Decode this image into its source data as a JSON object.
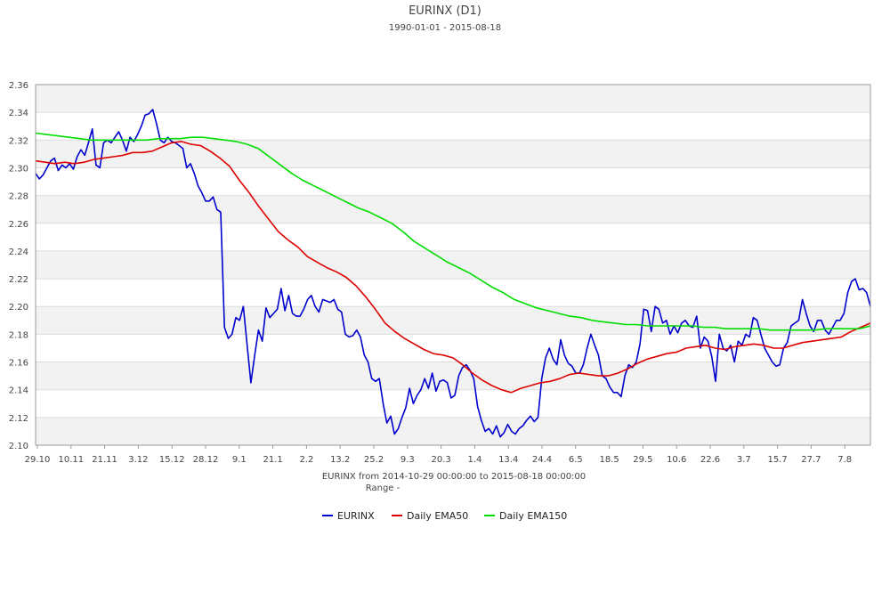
{
  "chart_data": {
    "type": "line",
    "title": "EURINX (D1)",
    "subtitle": "1990-01-01 - 2015-08-18",
    "xlabel": "EURINX from 2014-10-29 00:00:00 to 2015-08-18 00:00:00",
    "xlabel2": "Range  -",
    "ylim": [
      2.1,
      2.36
    ],
    "yticks": [
      "2.10",
      "2.12",
      "2.14",
      "2.16",
      "2.18",
      "2.20",
      "2.22",
      "2.24",
      "2.26",
      "2.28",
      "2.30",
      "2.32",
      "2.34",
      "2.36"
    ],
    "xticks": [
      "29.10",
      "10.11",
      "21.11",
      "3.12",
      "15.12",
      "28.12",
      "9.1",
      "21.1",
      "2.2",
      "13.2",
      "25.2",
      "9.3",
      "20.3",
      "1.4",
      "13.4",
      "24.4",
      "6.5",
      "18.5",
      "29.5",
      "10.6",
      "22.6",
      "3.7",
      "15.7",
      "27.7",
      "7.8"
    ],
    "grid": true,
    "legend_position": "bottom",
    "series": [
      {
        "name": "EURINX",
        "color": "#0000cc",
        "values": [
          2.296,
          2.292,
          2.295,
          2.3,
          2.305,
          2.307,
          2.298,
          2.302,
          2.3,
          2.303,
          2.299,
          2.308,
          2.313,
          2.309,
          2.318,
          2.328,
          2.302,
          2.3,
          2.318,
          2.32,
          2.318,
          2.322,
          2.326,
          2.32,
          2.312,
          2.322,
          2.319,
          2.324,
          2.33,
          2.338,
          2.339,
          2.342,
          2.332,
          2.32,
          2.318,
          2.322,
          2.319,
          2.318,
          2.316,
          2.314,
          2.3,
          2.303,
          2.296,
          2.287,
          2.282,
          2.276,
          2.276,
          2.279,
          2.27,
          2.268,
          2.185,
          2.177,
          2.18,
          2.192,
          2.19,
          2.2,
          2.172,
          2.145,
          2.165,
          2.183,
          2.175,
          2.199,
          2.192,
          2.195,
          2.198,
          2.213,
          2.197,
          2.208,
          2.195,
          2.193,
          2.193,
          2.198,
          2.205,
          2.208,
          2.2,
          2.196,
          2.205,
          2.204,
          2.203,
          2.205,
          2.198,
          2.196,
          2.18,
          2.178,
          2.179,
          2.183,
          2.178,
          2.165,
          2.16,
          2.148,
          2.146,
          2.148,
          2.13,
          2.116,
          2.121,
          2.108,
          2.112,
          2.12,
          2.127,
          2.141,
          2.13,
          2.136,
          2.14,
          2.148,
          2.141,
          2.152,
          2.139,
          2.146,
          2.147,
          2.145,
          2.134,
          2.136,
          2.15,
          2.156,
          2.158,
          2.154,
          2.148,
          2.128,
          2.118,
          2.11,
          2.112,
          2.108,
          2.114,
          2.106,
          2.109,
          2.115,
          2.11,
          2.108,
          2.112,
          2.114,
          2.118,
          2.121,
          2.117,
          2.12,
          2.148,
          2.163,
          2.17,
          2.162,
          2.158,
          2.176,
          2.165,
          2.159,
          2.157,
          2.152,
          2.152,
          2.158,
          2.17,
          2.18,
          2.172,
          2.165,
          2.15,
          2.148,
          2.142,
          2.138,
          2.138,
          2.135,
          2.15,
          2.158,
          2.156,
          2.16,
          2.173,
          2.198,
          2.197,
          2.182,
          2.2,
          2.198,
          2.188,
          2.19,
          2.18,
          2.186,
          2.181,
          2.188,
          2.19,
          2.186,
          2.185,
          2.193,
          2.17,
          2.178,
          2.175,
          2.164,
          2.146,
          2.18,
          2.17,
          2.168,
          2.172,
          2.16,
          2.175,
          2.172,
          2.18,
          2.178,
          2.192,
          2.19,
          2.18,
          2.17,
          2.165,
          2.16,
          2.157,
          2.158,
          2.17,
          2.174,
          2.186,
          2.188,
          2.19,
          2.205,
          2.195,
          2.186,
          2.182,
          2.19,
          2.19,
          2.183,
          2.18,
          2.185,
          2.19,
          2.19,
          2.195,
          2.21,
          2.218,
          2.22,
          2.212,
          2.213,
          2.21,
          2.2
        ]
      },
      {
        "name": "Daily EMA50",
        "color": "#dd0000",
        "values": [
          2.305,
          2.304,
          2.303,
          2.304,
          2.303,
          2.304,
          2.306,
          2.307,
          2.308,
          2.309,
          2.311,
          2.311,
          2.312,
          2.315,
          2.318,
          2.319,
          2.317,
          2.316,
          2.312,
          2.307,
          2.301,
          2.291,
          2.282,
          2.272,
          2.263,
          2.254,
          2.248,
          2.243,
          2.236,
          2.232,
          2.228,
          2.225,
          2.221,
          2.215,
          2.207,
          2.198,
          2.188,
          2.182,
          2.177,
          2.173,
          2.169,
          2.166,
          2.165,
          2.163,
          2.158,
          2.152,
          2.147,
          2.143,
          2.14,
          2.138,
          2.141,
          2.143,
          2.145,
          2.146,
          2.148,
          2.151,
          2.152,
          2.151,
          2.15,
          2.15,
          2.152,
          2.155,
          2.159,
          2.162,
          2.164,
          2.166,
          2.167,
          2.17,
          2.171,
          2.172,
          2.17,
          2.169,
          2.171,
          2.172,
          2.173,
          2.172,
          2.17,
          2.17,
          2.172,
          2.174,
          2.175,
          2.176,
          2.177,
          2.178,
          2.182,
          2.185,
          2.188
        ]
      },
      {
        "name": "Daily EMA150",
        "color": "#00dd00",
        "values": [
          2.325,
          2.324,
          2.323,
          2.322,
          2.321,
          2.32,
          2.32,
          2.32,
          2.32,
          2.32,
          2.32,
          2.321,
          2.321,
          2.321,
          2.322,
          2.322,
          2.321,
          2.32,
          2.319,
          2.317,
          2.314,
          2.308,
          2.302,
          2.296,
          2.291,
          2.287,
          2.283,
          2.279,
          2.275,
          2.271,
          2.268,
          2.264,
          2.26,
          2.254,
          2.247,
          2.242,
          2.237,
          2.232,
          2.228,
          2.224,
          2.219,
          2.214,
          2.21,
          2.205,
          2.202,
          2.199,
          2.197,
          2.195,
          2.193,
          2.192,
          2.19,
          2.189,
          2.188,
          2.187,
          2.187,
          2.186,
          2.186,
          2.186,
          2.186,
          2.186,
          2.185,
          2.185,
          2.184,
          2.184,
          2.184,
          2.184,
          2.183,
          2.183,
          2.183,
          2.183,
          2.183,
          2.184,
          2.184,
          2.184,
          2.184,
          2.186
        ]
      }
    ]
  }
}
